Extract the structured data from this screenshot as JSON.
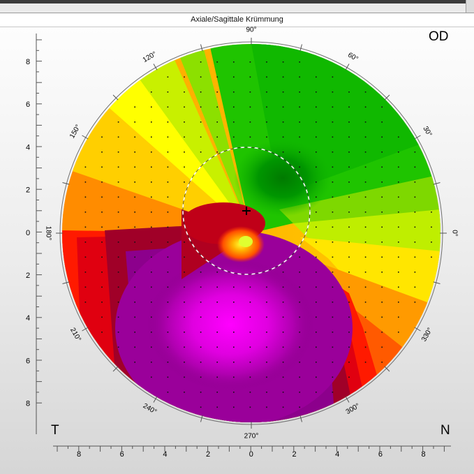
{
  "title": "Axiale/Sagittale Krümmung",
  "eye_label": "OD",
  "temporal_label": "T",
  "nasal_label": "N",
  "meridian_labels": [
    "90°",
    "60°",
    "30°",
    "0°",
    "330°",
    "300°",
    "270°",
    "240°",
    "210°",
    "180°",
    "150°",
    "120°"
  ],
  "y_axis_ticks": [
    "8",
    "6",
    "4",
    "2",
    "0",
    "2",
    "4",
    "6",
    "8"
  ],
  "x_axis_ticks": [
    "8",
    "6",
    "4",
    "2",
    "0",
    "2",
    "4",
    "6",
    "8"
  ],
  "colors": {
    "dark_green": "#008a00",
    "green": "#1fc400",
    "light_green": "#8ce000",
    "yellow": "#ffff00",
    "orange": "#ff9900",
    "red": "#ff1a00",
    "dark_red": "#a00028",
    "purple": "#8c008c",
    "magenta": "#ff00ff"
  }
}
